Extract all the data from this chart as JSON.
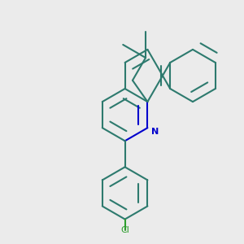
{
  "background_color": "#ebebeb",
  "bond_color": "#2d7a6e",
  "nitrogen_color": "#0000cc",
  "chlorine_color": "#2d9e2d",
  "bond_width": 1.5,
  "figsize": [
    3.0,
    3.0
  ],
  "dpi": 100,
  "BL": 0.107
}
